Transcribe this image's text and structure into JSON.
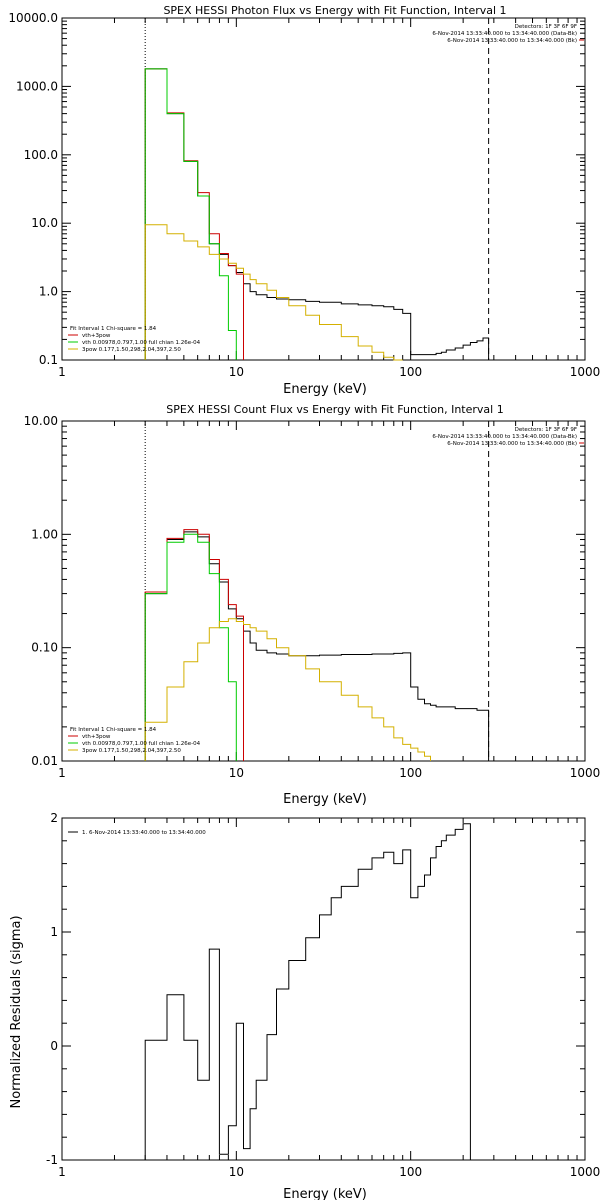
{
  "chart_data": [
    {
      "type": "line",
      "step": true,
      "title": "SPEX HESSI Photon Flux vs Energy with Fit Function, Interval 1",
      "xlabel": "Energy (keV)",
      "ylabel": "",
      "xscale": "log",
      "yscale": "log",
      "xlim": [
        1,
        1000
      ],
      "ylim": [
        0.1,
        10000
      ],
      "x_ticks": [
        1,
        10,
        100,
        1000
      ],
      "x_tick_labels": [
        "1",
        "10",
        "100",
        "1000"
      ],
      "y_ticks": [
        0.1,
        1,
        10,
        100,
        1000,
        10000
      ],
      "y_tick_labels": [
        "0.1",
        "1.0",
        "10.0",
        "100.0",
        "1000.0",
        "10000.0"
      ],
      "info_lines": [
        "Detectors: 1F 3F 6F 9F",
        "6-Nov-2014 13:33:40.000 to 13:34:40.000 (Data-Bk)",
        "6-Nov-2014 13:33:40.000 to 13:34:40.000 (Bk)"
      ],
      "info_colors": [
        "#000000",
        "#000000",
        "#cc0000"
      ],
      "legend_lines": [
        "Fit Interval 1    Chi-square = 1.84",
        "vth+3pow",
        "vth 0.00978,0.797,1.00  full chian 1.26e-04",
        "3pow 0.177,1.50,298,2.04,397,2.50"
      ],
      "legend_colors": [
        "#000000",
        "#cc0000",
        "#00cc00",
        "#d4b000"
      ],
      "vlines": [
        {
          "x": 3,
          "style": "dotted"
        },
        {
          "x": 280,
          "style": "dashed"
        }
      ],
      "series": [
        {
          "color": "#000000",
          "x": [
            3,
            4,
            5,
            6,
            7,
            8,
            9,
            10,
            11,
            12,
            13,
            15,
            17,
            20,
            25,
            30,
            40,
            50,
            60,
            70,
            80,
            90,
            100,
            110,
            120,
            130,
            140,
            150,
            160,
            180,
            200,
            220,
            240,
            260,
            280
          ],
          "y": [
            1800,
            400,
            80,
            25,
            5,
            3.5,
            2.4,
            1.9,
            1.3,
            1,
            0.9,
            0.82,
            0.78,
            0.76,
            0.72,
            0.7,
            0.66,
            0.64,
            0.62,
            0.6,
            0.55,
            0.48,
            0.12,
            0.12,
            0.12,
            0.12,
            0.125,
            0.13,
            0.14,
            0.15,
            0.165,
            0.18,
            0.19,
            0.21,
            null
          ]
        },
        {
          "color": "#cc0000",
          "x": [
            3,
            4,
            5,
            6,
            7,
            8,
            9,
            10,
            11
          ],
          "y": [
            1800,
            410,
            82,
            28,
            7,
            3.6,
            2.4,
            1.8,
            null
          ]
        },
        {
          "color": "#00cc00",
          "x": [
            3,
            4,
            5,
            6,
            7,
            8,
            9,
            10
          ],
          "y": [
            1800,
            400,
            80,
            25,
            5,
            1.7,
            0.27,
            null
          ]
        },
        {
          "color": "#d4b000",
          "x": [
            3,
            4,
            5,
            6,
            7,
            8,
            9,
            10,
            11,
            12,
            13,
            15,
            17,
            20,
            25,
            30,
            40,
            50,
            60,
            70,
            80,
            90
          ],
          "y": [
            9.5,
            7,
            5.5,
            4.5,
            3.5,
            3,
            2.6,
            2.2,
            1.8,
            1.5,
            1.3,
            1.05,
            0.82,
            0.62,
            0.45,
            0.33,
            0.22,
            0.16,
            0.13,
            0.11,
            0.1,
            null
          ]
        }
      ]
    },
    {
      "type": "line",
      "step": true,
      "title": "SPEX HESSI Count Flux vs Energy with Fit Function, Interval 1",
      "xlabel": "Energy (keV)",
      "ylabel": "",
      "xscale": "log",
      "yscale": "log",
      "xlim": [
        1,
        1000
      ],
      "ylim": [
        0.01,
        10
      ],
      "x_ticks": [
        1,
        10,
        100,
        1000
      ],
      "x_tick_labels": [
        "1",
        "10",
        "100",
        "1000"
      ],
      "y_ticks": [
        0.01,
        0.1,
        1,
        10
      ],
      "y_tick_labels": [
        "0.01",
        "0.10",
        "1.00",
        "10.00"
      ],
      "info_lines": [
        "Detectors: 1F 3F 6F 9F",
        "6-Nov-2014 13:33:40.000 to 13:34:40.000 (Data-Bk)",
        "6-Nov-2014 13:33:40.000 to 13:34:40.000 (Bk)"
      ],
      "info_colors": [
        "#000000",
        "#000000",
        "#cc0000"
      ],
      "legend_lines": [
        "Fit Interval 1    Chi-square = 1.84",
        "vth+3pow",
        "vth 0.00978,0.797,1.00  full chian 1.26e-04",
        "3pow 0.177,1.50,298,2.04,397,2.50"
      ],
      "legend_colors": [
        "#000000",
        "#cc0000",
        "#00cc00",
        "#d4b000"
      ],
      "vlines": [
        {
          "x": 3,
          "style": "dotted"
        },
        {
          "x": 280,
          "style": "dashed"
        }
      ],
      "series": [
        {
          "color": "#000000",
          "x": [
            3,
            4,
            5,
            6,
            7,
            8,
            9,
            10,
            11,
            12,
            13,
            15,
            17,
            20,
            25,
            30,
            40,
            50,
            60,
            70,
            80,
            90,
            100,
            110,
            120,
            130,
            140,
            150,
            160,
            180,
            200,
            220,
            240,
            260,
            280
          ],
          "y": [
            0.3,
            0.9,
            1.05,
            0.95,
            0.55,
            0.38,
            0.22,
            0.18,
            0.14,
            0.11,
            0.095,
            0.09,
            0.088,
            0.085,
            0.085,
            0.086,
            0.087,
            0.087,
            0.088,
            0.088,
            0.089,
            0.09,
            0.045,
            0.035,
            0.032,
            0.031,
            0.03,
            0.03,
            0.03,
            0.029,
            0.029,
            0.029,
            0.028,
            0.028,
            null
          ]
        },
        {
          "color": "#cc0000",
          "x": [
            3,
            4,
            5,
            6,
            7,
            8,
            9,
            10,
            11
          ],
          "y": [
            0.31,
            0.92,
            1.1,
            1.0,
            0.6,
            0.4,
            0.24,
            0.19,
            null
          ]
        },
        {
          "color": "#00cc00",
          "x": [
            3,
            4,
            5,
            6,
            7,
            8,
            9,
            10
          ],
          "y": [
            0.3,
            0.85,
            1.0,
            0.85,
            0.45,
            0.15,
            0.05,
            null
          ]
        },
        {
          "color": "#d4b000",
          "x": [
            3,
            4,
            5,
            6,
            7,
            8,
            9,
            10,
            11,
            12,
            13,
            15,
            17,
            20,
            25,
            30,
            40,
            50,
            60,
            70,
            80,
            90,
            100,
            110,
            120,
            130
          ],
          "y": [
            0.022,
            0.045,
            0.075,
            0.11,
            0.15,
            0.17,
            0.18,
            0.17,
            0.16,
            0.15,
            0.14,
            0.12,
            0.1,
            0.085,
            0.065,
            0.05,
            0.038,
            0.03,
            0.024,
            0.02,
            0.016,
            0.014,
            0.013,
            0.012,
            0.011,
            null
          ]
        }
      ]
    },
    {
      "type": "line",
      "step": true,
      "title": "",
      "xlabel": "Energy (keV)",
      "ylabel": "Normalized Residuals (sigma)",
      "xscale": "log",
      "yscale": "linear",
      "xlim": [
        1,
        1000
      ],
      "ylim": [
        -1,
        2
      ],
      "x_ticks": [
        1,
        10,
        100,
        1000
      ],
      "x_tick_labels": [
        "1",
        "10",
        "100",
        "1000"
      ],
      "y_ticks": [
        -1,
        0,
        1,
        2
      ],
      "y_tick_labels": [
        "-1",
        "0",
        "1",
        "2"
      ],
      "info_lines": [],
      "info_colors": [],
      "legend_lines": [
        "1.  6-Nov-2014 13:33:40.000 to 13:34:40.000"
      ],
      "legend_colors": [
        "#000000"
      ],
      "vlines": [],
      "series": [
        {
          "color": "#000000",
          "x": [
            3,
            4,
            5,
            6,
            7,
            8,
            9,
            10,
            11,
            12,
            13,
            15,
            17,
            20,
            25,
            30,
            35,
            40,
            50,
            60,
            70,
            80,
            90,
            100,
            110,
            120,
            130,
            140,
            150,
            160,
            180,
            200,
            220,
            240,
            260,
            280
          ],
          "y": [
            0.05,
            0.45,
            0.05,
            -0.3,
            0.85,
            -0.95,
            -0.7,
            0.2,
            -0.9,
            -0.55,
            -0.3,
            0.1,
            0.5,
            0.75,
            0.95,
            1.15,
            1.3,
            1.4,
            1.55,
            1.65,
            1.7,
            1.6,
            1.72,
            1.3,
            1.4,
            1.5,
            1.65,
            1.75,
            1.8,
            1.85,
            1.9,
            1.95,
            null,
            null,
            null,
            null
          ]
        }
      ]
    }
  ]
}
